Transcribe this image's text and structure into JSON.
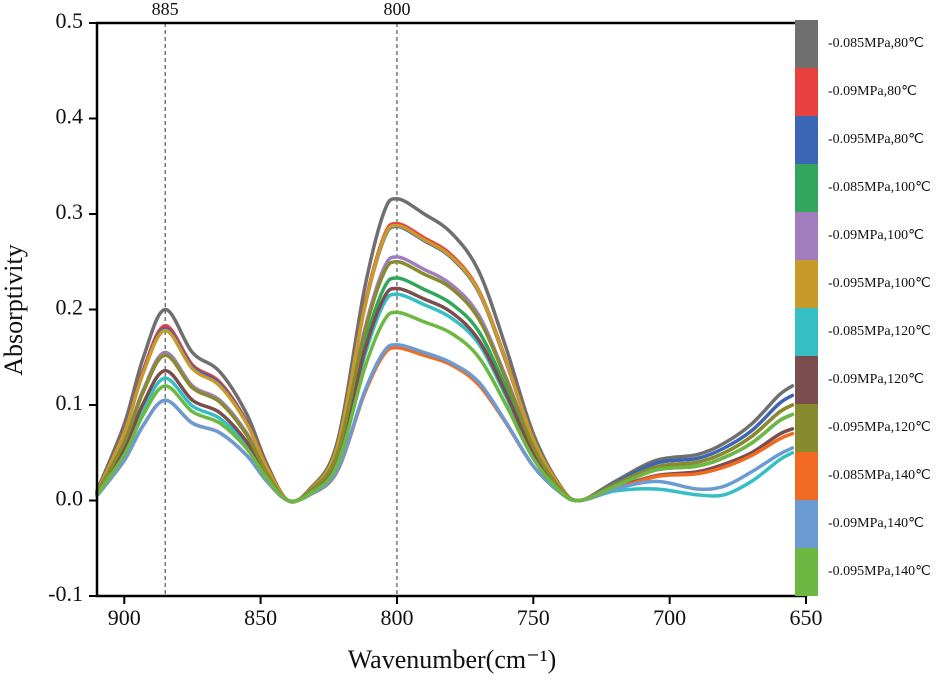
{
  "chart_data": {
    "type": "line",
    "x_label": "Wavenumber(cm⁻¹)",
    "y_label": "Absorptivity",
    "x": [
      910,
      900,
      893,
      885,
      875,
      865,
      855,
      848,
      840,
      832,
      822,
      812,
      805,
      800,
      790,
      780,
      770,
      760,
      750,
      740,
      733,
      720,
      705,
      690,
      680,
      670,
      660,
      655
    ],
    "xlim": [
      910,
      650
    ],
    "xticks": [
      900,
      850,
      800,
      750,
      700,
      650
    ],
    "ylim": [
      -0.1,
      0.5
    ],
    "yticks": [
      -0.1,
      {
        "value": 0,
        "label": "0.0"
      },
      0.1,
      0.2,
      0.3,
      0.4,
      0.5
    ],
    "vlines": [
      885,
      800
    ],
    "series": [
      {
        "name": "-0.085MPa,80℃",
        "color": "#6f6f6f",
        "values": [
          0.01,
          0.08,
          0.15,
          0.2,
          0.155,
          0.135,
          0.09,
          0.04,
          0,
          0.012,
          0.06,
          0.22,
          0.3,
          0.316,
          0.3,
          0.28,
          0.24,
          0.16,
          0.07,
          0.015,
          0,
          0.02,
          0.042,
          0.048,
          0.06,
          0.08,
          0.11,
          0.12
        ]
      },
      {
        "name": "-0.09MPa,80℃",
        "color": "#e8403f",
        "values": [
          0.009,
          0.073,
          0.137,
          0.183,
          0.142,
          0.124,
          0.082,
          0.037,
          0,
          0.011,
          0.055,
          0.202,
          0.275,
          0.29,
          0.275,
          0.257,
          0.22,
          0.147,
          0.064,
          0.014,
          0,
          0.017,
          0.035,
          0.04,
          0.05,
          0.067,
          0.092,
          0.1
        ]
      },
      {
        "name": "-0.095MPa,80℃",
        "color": "#3b65b5",
        "values": [
          0.009,
          0.072,
          0.135,
          0.18,
          0.14,
          0.122,
          0.081,
          0.036,
          0,
          0.011,
          0.055,
          0.2,
          0.272,
          0.287,
          0.272,
          0.254,
          0.218,
          0.145,
          0.064,
          0.013,
          0,
          0.018,
          0.039,
          0.044,
          0.055,
          0.073,
          0.101,
          0.11
        ]
      },
      {
        "name": "-0.085MPa,100℃",
        "color": "#32a65c",
        "values": [
          0.008,
          0.062,
          0.116,
          0.155,
          0.12,
          0.105,
          0.07,
          0.031,
          0,
          0.009,
          0.044,
          0.162,
          0.221,
          0.233,
          0.221,
          0.206,
          0.177,
          0.118,
          0.052,
          0.011,
          0,
          0.015,
          0.032,
          0.036,
          0.045,
          0.06,
          0.083,
          0.09
        ]
      },
      {
        "name": "-0.09MPa,100℃",
        "color": "#a27dbd",
        "values": [
          0.008,
          0.062,
          0.116,
          0.155,
          0.12,
          0.105,
          0.07,
          0.031,
          0,
          0.01,
          0.048,
          0.177,
          0.242,
          0.255,
          0.242,
          0.226,
          0.194,
          0.129,
          0.057,
          0.012,
          0,
          0.015,
          0.032,
          0.036,
          0.045,
          0.06,
          0.083,
          0.09
        ]
      },
      {
        "name": "-0.095MPa,100℃",
        "color": "#c89a2a",
        "values": [
          0.009,
          0.071,
          0.134,
          0.178,
          0.138,
          0.12,
          0.08,
          0.036,
          0,
          0.011,
          0.055,
          0.2,
          0.273,
          0.288,
          0.273,
          0.255,
          0.219,
          0.146,
          0.064,
          0.014,
          0,
          0.017,
          0.035,
          0.04,
          0.05,
          0.067,
          0.092,
          0.1
        ]
      },
      {
        "name": "-0.085MPa,120℃",
        "color": "#35bfc4",
        "values": [
          0.006,
          0.051,
          0.096,
          0.128,
          0.099,
          0.086,
          0.058,
          0.026,
          0,
          0.008,
          0.041,
          0.15,
          0.205,
          0.216,
          0.205,
          0.191,
          0.164,
          0.109,
          0.048,
          0.01,
          0,
          0.01,
          0.012,
          0.006,
          0.006,
          0.02,
          0.042,
          0.05
        ]
      },
      {
        "name": "-0.09MPa,120℃",
        "color": "#7c4d4d",
        "values": [
          0.007,
          0.054,
          0.102,
          0.136,
          0.105,
          0.092,
          0.061,
          0.027,
          0,
          0.008,
          0.042,
          0.155,
          0.211,
          0.222,
          0.211,
          0.197,
          0.168,
          0.112,
          0.049,
          0.01,
          0,
          0.013,
          0.026,
          0.03,
          0.038,
          0.05,
          0.069,
          0.075
        ]
      },
      {
        "name": "-0.095MPa,120℃",
        "color": "#878b30",
        "values": [
          0.008,
          0.061,
          0.114,
          0.152,
          0.118,
          0.103,
          0.068,
          0.03,
          0,
          0.01,
          0.048,
          0.174,
          0.237,
          0.25,
          0.237,
          0.222,
          0.19,
          0.127,
          0.056,
          0.012,
          0,
          0.017,
          0.035,
          0.04,
          0.05,
          0.067,
          0.092,
          0.1
        ]
      },
      {
        "name": "-0.085MPa,140℃",
        "color": "#f26a22",
        "values": [
          0.005,
          0.042,
          0.079,
          0.105,
          0.081,
          0.071,
          0.047,
          0.021,
          0,
          0.006,
          0.03,
          0.111,
          0.152,
          0.16,
          0.152,
          0.142,
          0.121,
          0.081,
          0.036,
          0.008,
          0,
          0.012,
          0.025,
          0.028,
          0.035,
          0.047,
          0.064,
          0.07
        ]
      },
      {
        "name": "-0.09MPa,140℃",
        "color": "#6a9bd2",
        "values": [
          0.005,
          0.042,
          0.079,
          0.105,
          0.081,
          0.071,
          0.047,
          0.021,
          0,
          0.006,
          0.031,
          0.113,
          0.155,
          0.163,
          0.155,
          0.144,
          0.124,
          0.082,
          0.036,
          0.008,
          0,
          0.012,
          0.02,
          0.012,
          0.015,
          0.03,
          0.048,
          0.055
        ]
      },
      {
        "name": "-0.095MPa,140℃",
        "color": "#6cb843",
        "values": [
          0.006,
          0.048,
          0.09,
          0.12,
          0.093,
          0.081,
          0.054,
          0.024,
          0,
          0.007,
          0.037,
          0.137,
          0.187,
          0.197,
          0.187,
          0.175,
          0.15,
          0.1,
          0.044,
          0.009,
          0,
          0.015,
          0.032,
          0.036,
          0.045,
          0.06,
          0.083,
          0.09
        ]
      }
    ]
  }
}
